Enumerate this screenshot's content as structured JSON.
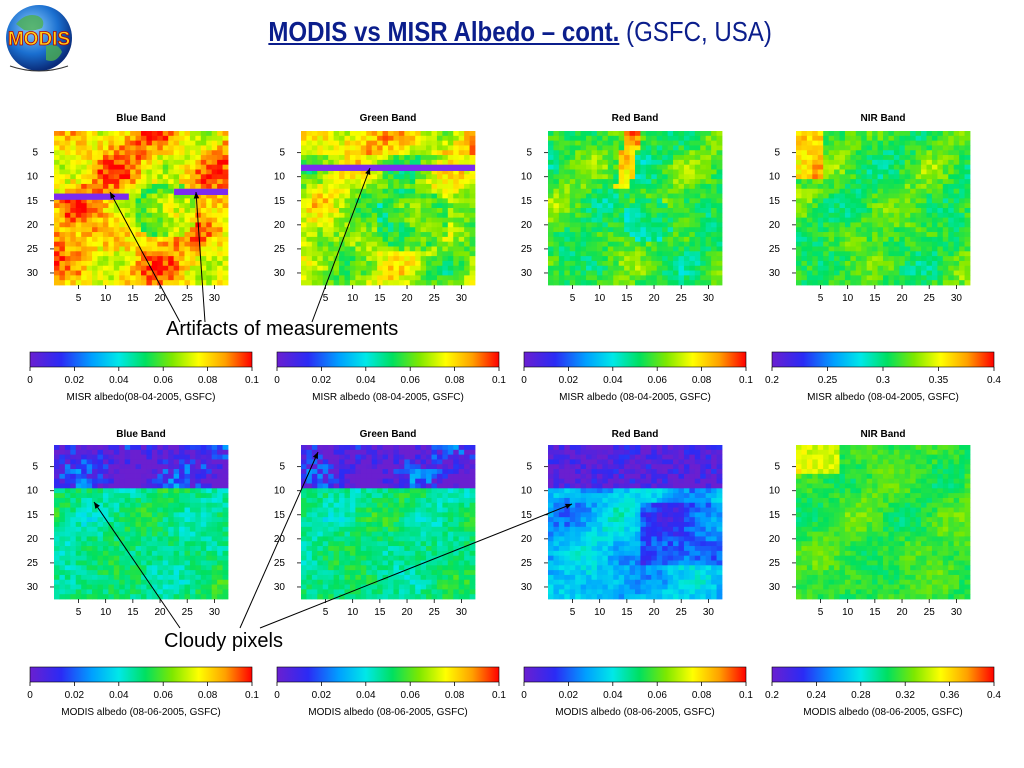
{
  "header": {
    "title_main": "MODIS vs MISR Albedo – cont.",
    "title_sub": "(GSFC, USA)",
    "logo_text": "MODIS"
  },
  "annotations": {
    "artifacts": "Artifacts of measurements",
    "cloudy": "Cloudy pixels"
  },
  "colors": {
    "title": "#0b1e8c",
    "colormap": [
      "#6a1fd0",
      "#2b2bf5",
      "#00a0ff",
      "#00e8e8",
      "#00e060",
      "#7de800",
      "#ffff00",
      "#ffa000",
      "#ff0000"
    ]
  },
  "chart_data": [
    {
      "type": "heatmap",
      "title": "Blue Band",
      "row": 0,
      "col": 0,
      "axis_ticks": [
        "5",
        "10",
        "15",
        "20",
        "25",
        "30"
      ],
      "grid_size": 32,
      "pattern": "high",
      "artifact_rows": [
        14,
        13
      ],
      "colorbar": {
        "ticks": [
          "0",
          "0.02",
          "0.04",
          "0.06",
          "0.08",
          "0.1"
        ],
        "label": "MISR albedo(08-04-2005, GSFC)"
      }
    },
    {
      "type": "heatmap",
      "title": "Green Band",
      "row": 0,
      "col": 1,
      "axis_ticks": [
        "5",
        "10",
        "15",
        "20",
        "25",
        "30"
      ],
      "grid_size": 32,
      "pattern": "mid-high",
      "artifact_rows": [
        8
      ],
      "colorbar": {
        "ticks": [
          "0",
          "0.02",
          "0.04",
          "0.06",
          "0.08",
          "0.1"
        ],
        "label": "MISR albedo (08-04-2005, GSFC)"
      }
    },
    {
      "type": "heatmap",
      "title": "Red Band",
      "row": 0,
      "col": 2,
      "axis_ticks": [
        "5",
        "10",
        "15",
        "20",
        "25",
        "30"
      ],
      "grid_size": 32,
      "pattern": "mid",
      "artifact_rows": [],
      "colorbar": {
        "ticks": [
          "0",
          "0.02",
          "0.04",
          "0.06",
          "0.08",
          "0.1"
        ],
        "label": "MISR albedo (08-04-2005, GSFC)"
      }
    },
    {
      "type": "heatmap",
      "title": "NIR Band",
      "row": 0,
      "col": 3,
      "axis_ticks": [
        "5",
        "10",
        "15",
        "20",
        "25",
        "30"
      ],
      "grid_size": 32,
      "pattern": "nir",
      "artifact_rows": [],
      "colorbar": {
        "ticks": [
          "0.2",
          "0.25",
          "0.3",
          "0.35",
          "0.4"
        ],
        "label": "MISR albedo (08-04-2005, GSFC)"
      }
    },
    {
      "type": "heatmap",
      "title": "Blue Band",
      "row": 1,
      "col": 0,
      "axis_ticks": [
        "5",
        "10",
        "15",
        "20",
        "25",
        "30"
      ],
      "grid_size": 32,
      "pattern": "cloudy-low",
      "artifact_rows": [],
      "colorbar": {
        "ticks": [
          "0",
          "0.02",
          "0.04",
          "0.06",
          "0.08",
          "0.1"
        ],
        "label": "MODIS albedo (08-06-2005, GSFC)"
      }
    },
    {
      "type": "heatmap",
      "title": "Green Band",
      "row": 1,
      "col": 1,
      "axis_ticks": [
        "5",
        "10",
        "15",
        "20",
        "25",
        "30"
      ],
      "grid_size": 32,
      "pattern": "cloudy-low",
      "artifact_rows": [],
      "colorbar": {
        "ticks": [
          "0",
          "0.02",
          "0.04",
          "0.06",
          "0.08",
          "0.1"
        ],
        "label": "MODIS albedo (08-06-2005, GSFC)"
      }
    },
    {
      "type": "heatmap",
      "title": "Red Band",
      "row": 1,
      "col": 2,
      "axis_ticks": [
        "5",
        "10",
        "15",
        "20",
        "25",
        "30"
      ],
      "grid_size": 32,
      "pattern": "cloudy-blue",
      "artifact_rows": [],
      "colorbar": {
        "ticks": [
          "0",
          "0.02",
          "0.04",
          "0.06",
          "0.08",
          "0.1"
        ],
        "label": "MODIS albedo (08-06-2005, GSFC)"
      }
    },
    {
      "type": "heatmap",
      "title": "NIR Band",
      "row": 1,
      "col": 3,
      "axis_ticks": [
        "5",
        "10",
        "15",
        "20",
        "25",
        "30"
      ],
      "grid_size": 32,
      "pattern": "nir-modis",
      "artifact_rows": [],
      "colorbar": {
        "ticks": [
          "0.2",
          "0.24",
          "0.28",
          "0.32",
          "0.36",
          "0.4"
        ],
        "label": "MODIS albedo (08-06-2005, GSFC)"
      }
    }
  ]
}
